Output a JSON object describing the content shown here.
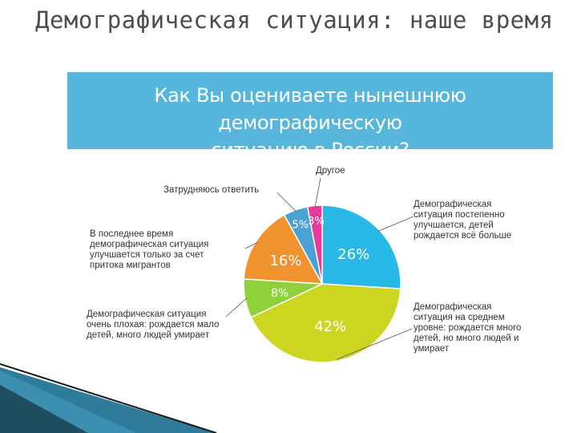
{
  "slide": {
    "title": "Демографическая ситуация: наше время"
  },
  "chart_data": {
    "type": "pie",
    "title": "Как Вы оцениваете нынешнюю демографическую ситуацию в России?",
    "title_lines": [
      "Как Вы оцениваете нынешнюю демографическую",
      "ситуацию в России?"
    ],
    "slices": [
      {
        "label": "Демографическая ситуация постепенно улучшается, детей рождается всё больше",
        "value": 26,
        "value_label": "26%",
        "color": "#29b9e6"
      },
      {
        "label": "Демографическая ситуация на среднем уровне: рождается много детей, но много людей и умирает",
        "value": 42,
        "value_label": "42%",
        "color": "#ccd520"
      },
      {
        "label": "Демографическая ситуация очень плохая: рождается мало детей, много людей умирает",
        "value": 8,
        "value_label": "8%",
        "color": "#8fd13a"
      },
      {
        "label": "В последнее время демографическая ситуация улучшается только за счет притока мигрантов",
        "value": 16,
        "value_label": "16%",
        "color": "#f0922e"
      },
      {
        "label": "Затрудняюсь ответить",
        "value": 5,
        "value_label": "5%",
        "color": "#4aa2d4"
      },
      {
        "label": "Другое",
        "value": 3,
        "value_label": "3%",
        "color": "#e83a9c"
      }
    ]
  },
  "labels": {
    "s0": [
      "Демографическая",
      "ситуация постепенно",
      "улучшается, детей",
      "рождается всё больше"
    ],
    "s1": [
      "Демографическая",
      "ситуация на среднем",
      "уровне: рождается много",
      "детей, но много людей и",
      "умирает"
    ],
    "s2": [
      "Демографическая ситуация",
      "очень плохая: рождается мало",
      "детей, много людей умирает"
    ],
    "s3": [
      "В последнее время",
      "демографическая ситуация",
      "улучшается только за счет",
      "притока мигрантов"
    ],
    "s4": [
      "Затрудняюсь ответить"
    ],
    "s5": [
      "Другое"
    ]
  },
  "colors": {
    "banner": "#56b6dc",
    "corner_dark": "#1f4e5f",
    "corner_light": "#3c8fb0"
  }
}
